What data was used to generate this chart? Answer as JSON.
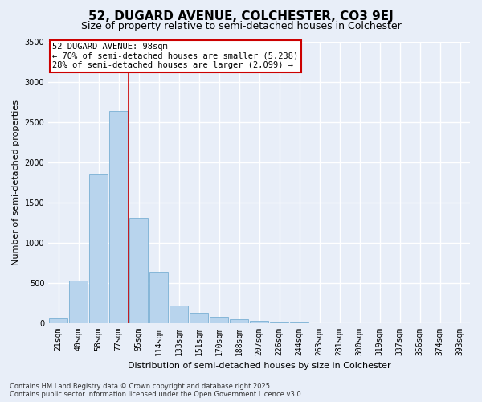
{
  "title_line1": "52, DUGARD AVENUE, COLCHESTER, CO3 9EJ",
  "title_line2": "Size of property relative to semi-detached houses in Colchester",
  "xlabel": "Distribution of semi-detached houses by size in Colchester",
  "ylabel": "Number of semi-detached properties",
  "categories": [
    "21sqm",
    "40sqm",
    "58sqm",
    "77sqm",
    "95sqm",
    "114sqm",
    "133sqm",
    "151sqm",
    "170sqm",
    "188sqm",
    "207sqm",
    "226sqm",
    "244sqm",
    "263sqm",
    "281sqm",
    "300sqm",
    "319sqm",
    "337sqm",
    "356sqm",
    "374sqm",
    "393sqm"
  ],
  "values": [
    60,
    530,
    1850,
    2640,
    1310,
    640,
    215,
    130,
    75,
    45,
    30,
    10,
    5,
    0,
    0,
    0,
    0,
    0,
    0,
    0,
    0
  ],
  "bar_color": "#b8d4ed",
  "bar_edge_color": "#7ab0d4",
  "vline_color": "#cc0000",
  "vline_x_index": 4,
  "ylim": [
    0,
    3500
  ],
  "yticks": [
    0,
    500,
    1000,
    1500,
    2000,
    2500,
    3000,
    3500
  ],
  "annotation_text": "52 DUGARD AVENUE: 98sqm\n← 70% of semi-detached houses are smaller (5,238)\n28% of semi-detached houses are larger (2,099) →",
  "annotation_box_color": "#ffffff",
  "annotation_box_edge": "#cc0000",
  "footer_line1": "Contains HM Land Registry data © Crown copyright and database right 2025.",
  "footer_line2": "Contains public sector information licensed under the Open Government Licence v3.0.",
  "background_color": "#e8eef8",
  "grid_color": "#ffffff",
  "title_fontsize": 11,
  "subtitle_fontsize": 9,
  "axis_label_fontsize": 8,
  "tick_fontsize": 7
}
